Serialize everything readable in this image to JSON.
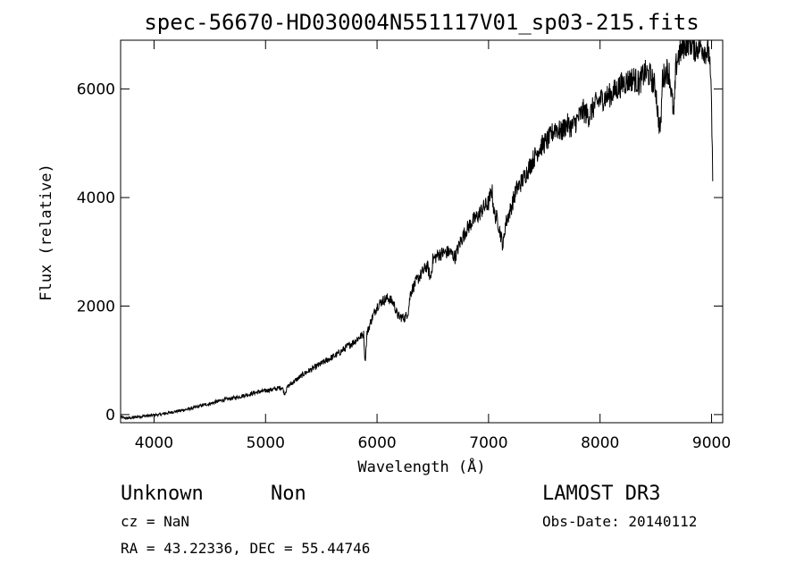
{
  "chart_data": {
    "type": "line",
    "title": "spec-56670-HD030004N551117V01_sp03-215.fits",
    "xlabel": "Wavelength (Å)",
    "ylabel": "Flux (relative)",
    "xlim": [
      3700,
      9100
    ],
    "ylim": [
      -150,
      6900
    ],
    "x_ticks": [
      4000,
      5000,
      6000,
      7000,
      8000,
      9000
    ],
    "y_ticks": [
      0,
      2000,
      4000,
      6000
    ],
    "grid": false,
    "series": [
      {
        "x": [
          3700,
          3750,
          3800,
          3850,
          3900,
          3950,
          4000,
          4050,
          4100,
          4150,
          4200,
          4250,
          4300,
          4350,
          4400,
          4450,
          4500,
          4550,
          4600,
          4650,
          4700,
          4750,
          4800,
          4850,
          4900,
          4950,
          5000,
          5050,
          5100,
          5150,
          5170,
          5200,
          5250,
          5300,
          5350,
          5400,
          5450,
          5500,
          5550,
          5600,
          5650,
          5700,
          5750,
          5800,
          5850,
          5880,
          5893,
          5910,
          5950,
          6000,
          6050,
          6100,
          6150,
          6180,
          6200,
          6250,
          6280,
          6300,
          6350,
          6400,
          6450,
          6480,
          6500,
          6550,
          6600,
          6650,
          6700,
          6750,
          6800,
          6850,
          6900,
          6950,
          7000,
          7030,
          7050,
          7080,
          7100,
          7130,
          7150,
          7200,
          7250,
          7300,
          7350,
          7400,
          7450,
          7500,
          7550,
          7600,
          7650,
          7700,
          7750,
          7800,
          7850,
          7900,
          7950,
          8000,
          8050,
          8100,
          8150,
          8200,
          8250,
          8300,
          8350,
          8400,
          8450,
          8500,
          8520,
          8542,
          8560,
          8600,
          8620,
          8662,
          8680,
          8700,
          8750,
          8800,
          8850,
          8900,
          8950,
          8980,
          9000,
          9010
        ],
        "y": [
          -50,
          -70,
          -60,
          -40,
          -30,
          -20,
          -10,
          0,
          20,
          40,
          60,
          80,
          100,
          120,
          150,
          180,
          200,
          230,
          260,
          280,
          300,
          320,
          350,
          370,
          400,
          420,
          440,
          460,
          480,
          500,
          380,
          520,
          600,
          680,
          760,
          820,
          880,
          940,
          1000,
          1060,
          1120,
          1200,
          1280,
          1350,
          1440,
          1480,
          960,
          1500,
          1750,
          2000,
          2100,
          2150,
          2050,
          1850,
          1800,
          1780,
          1900,
          2250,
          2450,
          2600,
          2750,
          2500,
          2850,
          2950,
          2980,
          3000,
          2900,
          3200,
          3400,
          3550,
          3650,
          3800,
          3900,
          4150,
          3700,
          3600,
          3400,
          3100,
          3500,
          3800,
          4150,
          4300,
          4500,
          4700,
          4900,
          5000,
          5100,
          5300,
          5200,
          5350,
          5300,
          5450,
          5600,
          5500,
          5700,
          5800,
          5850,
          5900,
          6000,
          6100,
          6150,
          6200,
          6100,
          6300,
          6250,
          6000,
          5500,
          5200,
          6200,
          6350,
          6300,
          5500,
          6400,
          6600,
          6800,
          6900,
          6750,
          6800,
          6700,
          6650,
          5700,
          4300
        ]
      }
    ],
    "annotations": {
      "object_class": "Unknown",
      "subclass": "Non",
      "survey": "LAMOST DR3",
      "redshift": "cz = NaN",
      "obs_date": "Obs-Date: 20140112",
      "coords": "RA =  43.22336, DEC =  55.44746"
    }
  }
}
